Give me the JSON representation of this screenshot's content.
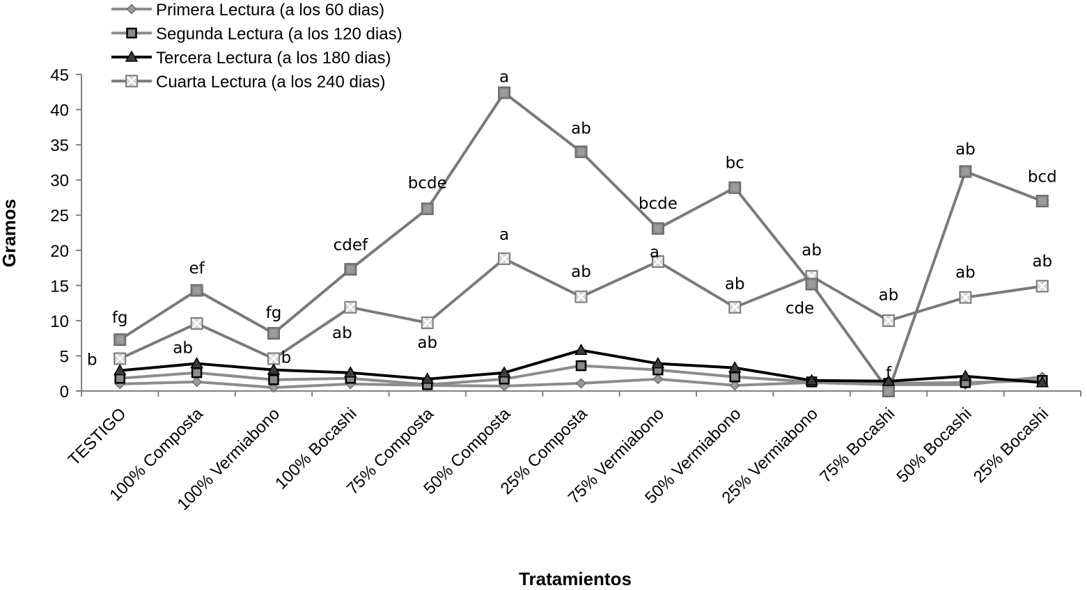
{
  "chart_data": {
    "type": "line",
    "title": "",
    "xlabel": "Tratamientos",
    "ylabel": "Gramos",
    "ylim": [
      0,
      45
    ],
    "yticks": [
      0,
      5,
      10,
      15,
      20,
      25,
      30,
      35,
      40,
      45
    ],
    "grid": false,
    "legend_position": "top-left",
    "categories": [
      "TESTIGO",
      "100%  Composta",
      "100%  Vermiabono",
      "100%  Bocashi",
      "75% Composta",
      "50% Composta",
      "25% Composta",
      "75% Vermiabono",
      "50% Vermiabono",
      "25% Vermiabono",
      "75% Bocashi",
      "50% Bocashi",
      "25% Bocashi"
    ],
    "series": [
      {
        "name": "Primera Lectura (a los 60 dias)",
        "color": "#8c8c8c",
        "marker": "diamond",
        "values": [
          1.0,
          1.3,
          0.5,
          1.0,
          0.8,
          0.7,
          1.1,
          1.7,
          0.8,
          1.2,
          0.9,
          0.9,
          2.0
        ]
      },
      {
        "name": "Segunda Lectura (a los 120 dias)",
        "color": "#8c8c8c",
        "marker": "square",
        "values": [
          1.8,
          2.6,
          1.6,
          1.8,
          0.9,
          1.7,
          3.6,
          3.0,
          2.0,
          1.3,
          1.1,
          1.2,
          1.5
        ]
      },
      {
        "name": "Tercera Lectura (a los 180 dias)",
        "color": "#000000",
        "marker": "triangle",
        "values": [
          2.9,
          3.9,
          3.0,
          2.6,
          1.7,
          2.6,
          5.8,
          3.9,
          3.3,
          1.5,
          1.4,
          2.1,
          1.2
        ]
      },
      {
        "name": "Cuarta Lectura (a los 240 dias)",
        "color": "#7a7a7a",
        "marker": "x-square",
        "values": [
          4.6,
          9.6,
          4.6,
          11.9,
          9.7,
          18.8,
          13.4,
          18.4,
          11.9,
          16.3,
          10.0,
          13.3,
          14.9
        ]
      },
      {
        "name": "",
        "color": "#7a7a7a",
        "marker": "filled-square",
        "in_legend": false,
        "values": [
          7.3,
          14.3,
          8.2,
          17.3,
          25.9,
          42.4,
          34.0,
          23.1,
          28.9,
          15.2,
          0.0,
          31.2,
          27.0
        ]
      }
    ],
    "annotations": [
      {
        "text": "fg",
        "category": 0,
        "y": 10.5
      },
      {
        "text": "b",
        "category": 0,
        "y": 4.5,
        "dx": -40
      },
      {
        "text": "ef",
        "category": 1,
        "y": 17.5
      },
      {
        "text": "ab",
        "category": 1,
        "y": 6.2,
        "dx": -20
      },
      {
        "text": "fg",
        "category": 2,
        "y": 11.2
      },
      {
        "text": "b",
        "category": 2,
        "y": 4.8,
        "dx": 18
      },
      {
        "text": "cdef",
        "category": 3,
        "y": 20.8
      },
      {
        "text": "ab",
        "category": 3,
        "y": 8.3,
        "dx": -12
      },
      {
        "text": "bcde",
        "category": 4,
        "y": 29.6
      },
      {
        "text": "ab",
        "category": 4,
        "y": 6.9
      },
      {
        "text": "a",
        "category": 5,
        "y": 44.7
      },
      {
        "text": "a",
        "category": 5,
        "y": 22.3
      },
      {
        "text": "ab",
        "category": 6,
        "y": 37.4
      },
      {
        "text": "ab",
        "category": 6,
        "y": 17.0
      },
      {
        "text": "bcde",
        "category": 7,
        "y": 26.7
      },
      {
        "text": "a",
        "category": 7,
        "y": 19.8,
        "dx": -5
      },
      {
        "text": "bc",
        "category": 8,
        "y": 32.5
      },
      {
        "text": "ab",
        "category": 8,
        "y": 15.3
      },
      {
        "text": "ab",
        "category": 9,
        "y": 20.1
      },
      {
        "text": "cde",
        "category": 9,
        "y": 11.8,
        "dx": -17
      },
      {
        "text": "ab",
        "category": 10,
        "y": 13.7
      },
      {
        "text": "f",
        "category": 10,
        "y": 2.6
      },
      {
        "text": "ab",
        "category": 11,
        "y": 34.4
      },
      {
        "text": "ab",
        "category": 11,
        "y": 16.9
      },
      {
        "text": "bcd",
        "category": 12,
        "y": 30.5
      },
      {
        "text": "ab",
        "category": 12,
        "y": 18.5
      }
    ]
  }
}
